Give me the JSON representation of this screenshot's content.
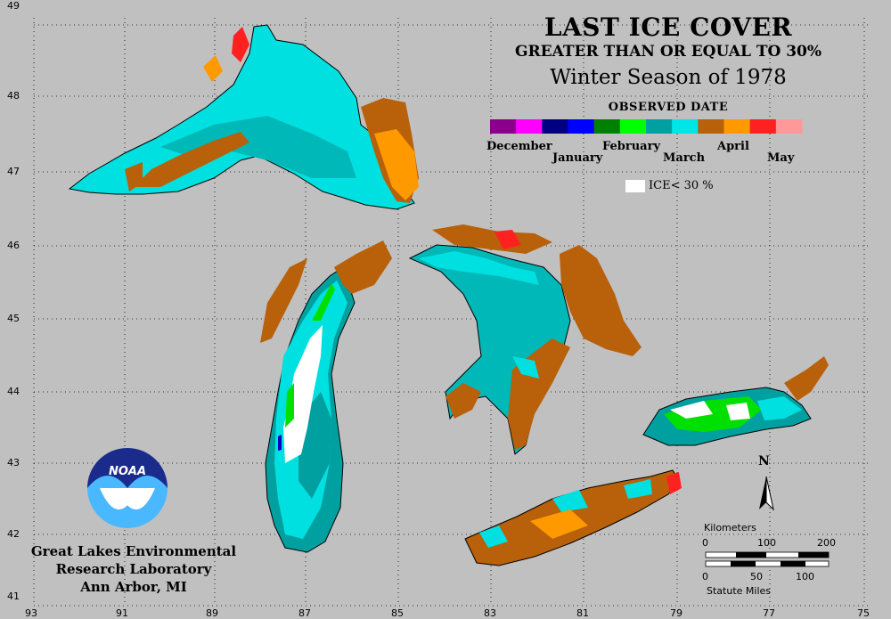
{
  "title": {
    "line1": "LAST ICE COVER",
    "line2": "GREATER THAN OR EQUAL TO 30%",
    "line3": "Winter Season of 1978",
    "legend_heading": "OBSERVED DATE"
  },
  "legend": {
    "months": [
      "December",
      "January",
      "February",
      "March",
      "April",
      "May"
    ],
    "ice_label": "ICE< 30 %",
    "colors": [
      "#8b008b",
      "#ff00ff",
      "#000080",
      "#0000ff",
      "#008000",
      "#00ff00",
      "#00a0a0",
      "#00e6e6",
      "#b8600a",
      "#ff9900",
      "#ff2020",
      "#ff9999"
    ]
  },
  "axis": {
    "latitudes": [
      "49",
      "48",
      "47",
      "46",
      "45",
      "44",
      "43",
      "42",
      "41"
    ],
    "longitudes": [
      "93",
      "91",
      "89",
      "87",
      "85",
      "83",
      "81",
      "79",
      "77",
      "75"
    ]
  },
  "scale": {
    "km_title": "Kilometers",
    "km_ticks": [
      "0",
      "100",
      "200"
    ],
    "mi_ticks": [
      "0",
      "50",
      "100"
    ],
    "mi_title": "Statute Miles"
  },
  "north_label": "N",
  "logo_text": "NOAA",
  "credit": {
    "line1": "Great Lakes Environmental",
    "line2": "Research Laboratory",
    "line3": "Ann Arbor, MI"
  },
  "colors": {
    "background": "#c0c0c0",
    "land_outline": "#000000",
    "march_light": "#00e0e0",
    "march_dark": "#00a0a0",
    "april_brown": "#b8600a",
    "april_orange": "#ff9900",
    "may_red": "#ff2020",
    "february_green": "#00e000",
    "ice_less": "#ffffff"
  }
}
